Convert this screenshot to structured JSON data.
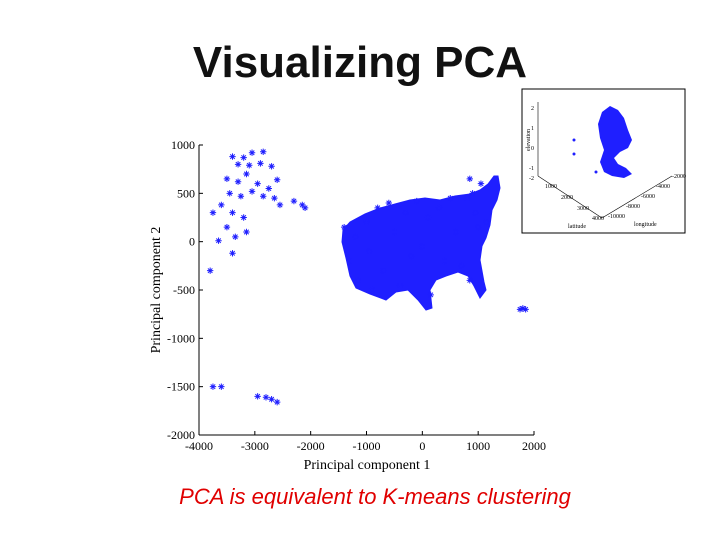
{
  "slide": {
    "title": "Visualizing PCA",
    "caption": "PCA is equivalent to K-means clustering"
  },
  "colors": {
    "points": "#1f1fff",
    "caption": "#e00000",
    "title": "#111111"
  },
  "chart_data": [
    {
      "type": "scatter",
      "title": "",
      "xlabel": "Principal component 1",
      "ylabel": "Principal component 2",
      "xlim": [
        -4000,
        2000
      ],
      "ylim": [
        -2000,
        1000
      ],
      "xticks": [
        "-4000",
        "-3000",
        "-2000",
        "-1000",
        "0",
        "1000",
        "2000"
      ],
      "yticks": [
        "1000",
        "500",
        "0",
        "-500",
        "-1000",
        "-1500",
        "-2000"
      ],
      "marker": "star",
      "series": [
        {
          "values": [
            [
              -3400,
              880
            ],
            [
              -3200,
              870
            ],
            [
              -3050,
              920
            ],
            [
              -2850,
              930
            ],
            [
              -3300,
              800
            ],
            [
              -3100,
              790
            ],
            [
              -2900,
              810
            ],
            [
              -2700,
              780
            ],
            [
              -3500,
              650
            ],
            [
              -3300,
              620
            ],
            [
              -3150,
              700
            ],
            [
              -2950,
              600
            ],
            [
              -2750,
              550
            ],
            [
              -2600,
              640
            ],
            [
              -3450,
              500
            ],
            [
              -3250,
              470
            ],
            [
              -3050,
              520
            ],
            [
              -2850,
              470
            ],
            [
              -2650,
              450
            ],
            [
              -3600,
              380
            ],
            [
              -3400,
              300
            ],
            [
              -3200,
              250
            ],
            [
              -2550,
              380
            ],
            [
              -2300,
              420
            ],
            [
              -2150,
              380
            ],
            [
              -2100,
              350
            ],
            [
              -3750,
              300
            ],
            [
              -3500,
              150
            ],
            [
              -3350,
              50
            ],
            [
              -3150,
              100
            ],
            [
              -3650,
              10
            ],
            [
              -3400,
              -120
            ],
            [
              -3800,
              -300
            ],
            [
              -3750,
              -1500
            ],
            [
              -3600,
              -1500
            ],
            [
              -2950,
              -1600
            ],
            [
              -2800,
              -1610
            ],
            [
              -2700,
              -1630
            ],
            [
              -2600,
              -1660
            ],
            [
              -1400,
              150
            ],
            [
              -1300,
              -200
            ],
            [
              -1200,
              50
            ],
            [
              -1150,
              -400
            ],
            [
              -1000,
              200
            ],
            [
              -950,
              -100
            ],
            [
              -900,
              -500
            ],
            [
              -800,
              350
            ],
            [
              -700,
              -300
            ],
            [
              -600,
              400
            ],
            [
              -500,
              100
            ],
            [
              -400,
              -450
            ],
            [
              -300,
              300
            ],
            [
              -200,
              -150
            ],
            [
              -100,
              420
            ],
            [
              0,
              -50
            ],
            [
              100,
              250
            ],
            [
              150,
              -550
            ],
            [
              300,
              350
            ],
            [
              400,
              -200
            ],
            [
              500,
              450
            ],
            [
              600,
              100
            ],
            [
              700,
              -250
            ],
            [
              800,
              450
            ],
            [
              850,
              650
            ],
            [
              900,
              500
            ],
            [
              950,
              300
            ],
            [
              1000,
              150
            ],
            [
              850,
              -400
            ],
            [
              1050,
              600
            ],
            [
              1150,
              200
            ],
            [
              1750,
              -700
            ],
            [
              1800,
              -690
            ],
            [
              1850,
              -700
            ]
          ]
        }
      ],
      "grid": false
    },
    {
      "type": "scatter",
      "title": "",
      "xlabel": "latitude",
      "ylabel": "elevation",
      "zlabel": "longitude",
      "yticks": [
        "2",
        "1",
        "0",
        "-1",
        "-2"
      ],
      "xticks": [
        "1000",
        "2000",
        "3000",
        "4000"
      ],
      "zticks": [
        "-2000",
        "-4000",
        "-6000",
        "-8000",
        "-10000"
      ],
      "marker": "dot",
      "grid": false
    }
  ]
}
